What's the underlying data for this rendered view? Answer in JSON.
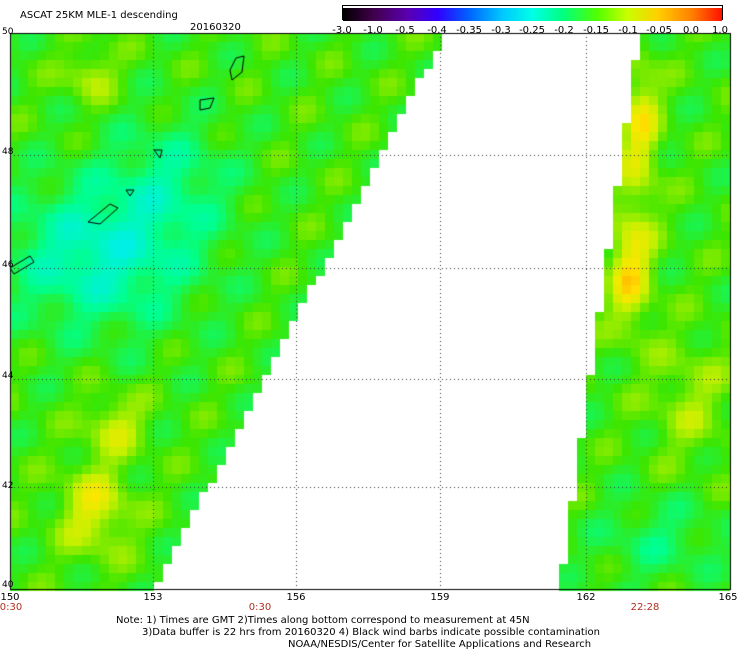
{
  "header": {
    "title": "ASCAT 25KM MLE-1 descending",
    "date": "20160320"
  },
  "colorbar": {
    "labels": [
      "-3.0",
      "-1.0",
      "-0.5",
      "-0.4",
      "-0.35",
      "-0.3",
      "-0.25",
      "-0.2",
      "-0.15",
      "-0.1",
      "-0.05",
      "0.0",
      "1.0"
    ],
    "colors": [
      "#000000",
      "#40004a",
      "#5a00b0",
      "#3000ff",
      "#0060ff",
      "#00c8ff",
      "#00ffe6",
      "#00ff80",
      "#50ff00",
      "#c8ff00",
      "#ffd000",
      "#ff8000",
      "#ff1000"
    ]
  },
  "map": {
    "lat_labels": [
      "50",
      "48",
      "46",
      "44",
      "42",
      "40"
    ],
    "lon_labels": [
      "150",
      "153",
      "156",
      "159",
      "162",
      "165"
    ],
    "time_labels": [
      "0:30",
      "0:30",
      "22:28"
    ]
  },
  "notes": {
    "line1": "Note: 1) Times are GMT 2)Times along bottom correspond to measurement at 45N",
    "line2": "3)Data buffer is 22 hrs from 20160320 4) Black wind barbs indicate possible contamination",
    "line3": "NOAA/NESDIS/Center for Satellite Applications and Research"
  }
}
